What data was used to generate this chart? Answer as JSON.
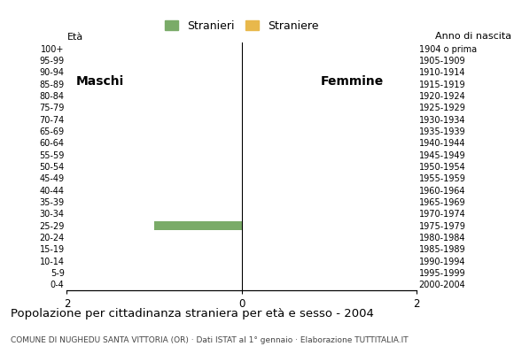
{
  "age_groups": [
    "100+",
    "95-99",
    "90-94",
    "85-89",
    "80-84",
    "75-79",
    "70-74",
    "65-69",
    "60-64",
    "55-59",
    "50-54",
    "45-49",
    "40-44",
    "35-39",
    "30-34",
    "25-29",
    "20-24",
    "15-19",
    "10-14",
    "5-9",
    "0-4"
  ],
  "birth_years": [
    "1904 o prima",
    "1905-1909",
    "1910-1914",
    "1915-1919",
    "1920-1924",
    "1925-1929",
    "1930-1934",
    "1935-1939",
    "1940-1944",
    "1945-1949",
    "1950-1954",
    "1955-1959",
    "1960-1964",
    "1965-1969",
    "1970-1974",
    "1975-1979",
    "1980-1984",
    "1985-1989",
    "1990-1994",
    "1995-1999",
    "2000-2004"
  ],
  "male_stranieri": [
    0,
    0,
    0,
    0,
    0,
    0,
    0,
    0,
    0,
    0,
    0,
    0,
    0,
    0,
    0,
    1,
    0,
    0,
    0,
    0,
    0
  ],
  "male_straniere": [
    0,
    0,
    0,
    0,
    0,
    0,
    0,
    0,
    0,
    0,
    0,
    0,
    0,
    0,
    0,
    0,
    0,
    0,
    0,
    0,
    0
  ],
  "female_stranieri": [
    0,
    0,
    0,
    0,
    0,
    0,
    0,
    0,
    0,
    0,
    0,
    0,
    0,
    0,
    0,
    0,
    0,
    0,
    0,
    0,
    0
  ],
  "female_straniere": [
    0,
    0,
    0,
    0,
    0,
    0,
    0,
    0,
    0,
    0,
    0,
    0,
    0,
    0,
    0,
    0,
    0,
    0,
    0,
    0,
    0
  ],
  "color_stranieri": "#7aab68",
  "color_straniere": "#e8b84b",
  "xlim": 2,
  "title_main": "Popolazione per cittadinanza straniera per età e sesso - 2004",
  "title_sub": "COMUNE DI NUGHEDU SANTA VITTORIA (OR) · Dati ISTAT al 1° gennaio · Elaborazione TUTTITALIA.IT",
  "legend_stranieri": "Stranieri",
  "legend_straniere": "Straniere",
  "label_maschi": "Maschi",
  "label_femmine": "Femmine",
  "label_eta": "Età",
  "label_anno": "Anno di nascita",
  "bar_height": 0.75
}
